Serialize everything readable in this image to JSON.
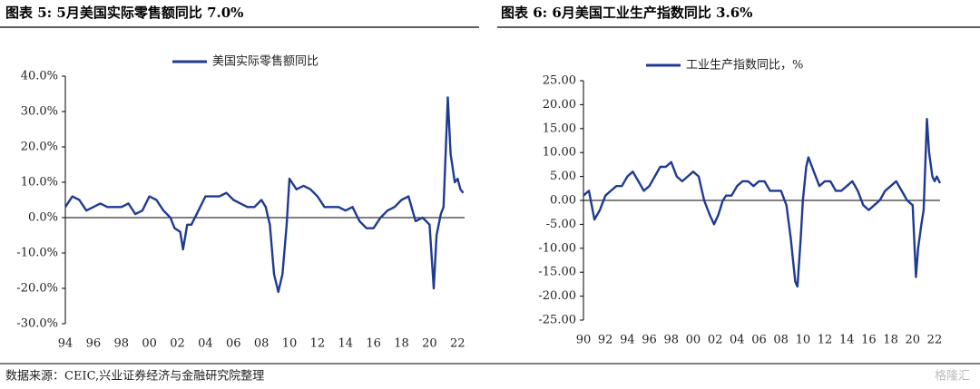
{
  "header": {
    "left_title": "图表 5:  5月美国实际零售额同比 7.0%",
    "right_title": "图表 6:   6月美国工业生产指数同比 3.6%"
  },
  "source": "数据来源：CEIC,兴业证券经济与金融研究院整理",
  "watermark": "格隆汇",
  "chart_data": [
    {
      "type": "line",
      "legend_position": "top",
      "x": [
        1994.0,
        1994.5,
        1995.0,
        1995.5,
        1996.0,
        1996.5,
        1997.0,
        1997.5,
        1998.0,
        1998.5,
        1999.0,
        1999.5,
        2000.0,
        2000.5,
        2001.0,
        2001.5,
        2001.8,
        2002.2,
        2002.4,
        2002.7,
        2003.0,
        2003.5,
        2004.0,
        2004.5,
        2005.0,
        2005.5,
        2006.0,
        2006.5,
        2007.0,
        2007.5,
        2008.0,
        2008.3,
        2008.6,
        2008.9,
        2009.2,
        2009.5,
        2009.8,
        2010.0,
        2010.5,
        2011.0,
        2011.5,
        2012.0,
        2012.5,
        2013.0,
        2013.5,
        2014.0,
        2014.5,
        2015.0,
        2015.5,
        2016.0,
        2016.5,
        2017.0,
        2017.5,
        2018.0,
        2018.5,
        2019.0,
        2019.5,
        2020.0,
        2020.3,
        2020.5,
        2020.8,
        2021.0,
        2021.3,
        2021.5,
        2021.8,
        2022.0,
        2022.2,
        2022.4
      ],
      "series": [
        {
          "name": "美国实际零售额同比",
          "color": "#1f3a93",
          "values": [
            3,
            6,
            5,
            2,
            3,
            4,
            3,
            3,
            3,
            4,
            1,
            2,
            6,
            5,
            2,
            0,
            -3,
            -4,
            -9,
            -2,
            -2,
            2,
            6,
            6,
            6,
            7,
            5,
            4,
            3,
            3,
            5,
            3,
            -2,
            -16,
            -21,
            -16,
            -2,
            11,
            8,
            9,
            8,
            6,
            3,
            3,
            3,
            2,
            3,
            -1,
            -3,
            -3,
            0,
            2,
            3,
            5,
            6,
            -1,
            0,
            -2,
            -20,
            -5,
            1,
            3,
            34,
            18,
            10,
            11,
            8,
            7
          ]
        }
      ],
      "xlim": [
        1994,
        2022.5
      ],
      "xticks": [
        {
          "value": 1994,
          "label": "94"
        },
        {
          "value": 1996,
          "label": "96"
        },
        {
          "value": 1998,
          "label": "98"
        },
        {
          "value": 2000,
          "label": "00"
        },
        {
          "value": 2002,
          "label": "02"
        },
        {
          "value": 2004,
          "label": "04"
        },
        {
          "value": 2006,
          "label": "06"
        },
        {
          "value": 2008,
          "label": "08"
        },
        {
          "value": 2010,
          "label": "10"
        },
        {
          "value": 2012,
          "label": "12"
        },
        {
          "value": 2014,
          "label": "14"
        },
        {
          "value": 2016,
          "label": "16"
        },
        {
          "value": 2018,
          "label": "18"
        },
        {
          "value": 2020,
          "label": "20"
        },
        {
          "value": 2022,
          "label": "22"
        }
      ],
      "ylim": [
        -30,
        40
      ],
      "yticks": [
        {
          "value": -30,
          "label": "-30.0%"
        },
        {
          "value": -20,
          "label": "-20.0%"
        },
        {
          "value": -10,
          "label": "-10.0%"
        },
        {
          "value": 0,
          "label": "0.0%"
        },
        {
          "value": 10,
          "label": "10.0%"
        },
        {
          "value": 20,
          "label": "20.0%"
        },
        {
          "value": 30,
          "label": "30.0%"
        },
        {
          "value": 40,
          "label": "40.0%"
        }
      ]
    },
    {
      "type": "line",
      "legend_position": "top",
      "x": [
        1990.0,
        1990.5,
        1991.0,
        1991.5,
        1992.0,
        1992.5,
        1993.0,
        1993.5,
        1994.0,
        1994.5,
        1995.0,
        1995.5,
        1996.0,
        1996.5,
        1997.0,
        1997.5,
        1998.0,
        1998.5,
        1999.0,
        1999.5,
        2000.0,
        2000.5,
        2001.0,
        2001.5,
        2001.9,
        2002.3,
        2002.7,
        2003.0,
        2003.5,
        2004.0,
        2004.5,
        2005.0,
        2005.5,
        2006.0,
        2006.5,
        2007.0,
        2007.5,
        2008.0,
        2008.5,
        2008.9,
        2009.3,
        2009.5,
        2009.8,
        2010.0,
        2010.3,
        2010.5,
        2011.0,
        2011.5,
        2012.0,
        2012.5,
        2013.0,
        2013.5,
        2014.0,
        2014.5,
        2015.0,
        2015.5,
        2016.0,
        2016.5,
        2017.0,
        2017.5,
        2018.0,
        2018.5,
        2019.0,
        2019.5,
        2020.0,
        2020.3,
        2020.5,
        2020.8,
        2021.0,
        2021.3,
        2021.5,
        2021.8,
        2022.0,
        2022.2,
        2022.5
      ],
      "series": [
        {
          "name": "工业生产指数同比，%",
          "color": "#1f3a93",
          "values": [
            1,
            2,
            -4,
            -2,
            1,
            2,
            3,
            3,
            5,
            6,
            4,
            2,
            3,
            5,
            7,
            7,
            8,
            5,
            4,
            5,
            6,
            5,
            0,
            -3,
            -5,
            -3,
            0,
            1,
            1,
            3,
            4,
            4,
            3,
            4,
            4,
            2,
            2,
            2,
            -1,
            -8,
            -17,
            -18,
            -8,
            0,
            7,
            9,
            6,
            3,
            4,
            4,
            2,
            2,
            3,
            4,
            2,
            -1,
            -2,
            -1,
            0,
            2,
            3,
            4,
            2,
            0,
            -1,
            -16,
            -10,
            -5,
            -2,
            17,
            10,
            5,
            4,
            5,
            3.6
          ]
        }
      ],
      "xlim": [
        1990,
        2022.5
      ],
      "xticks": [
        {
          "value": 1990,
          "label": "90"
        },
        {
          "value": 1992,
          "label": "92"
        },
        {
          "value": 1994,
          "label": "94"
        },
        {
          "value": 1996,
          "label": "96"
        },
        {
          "value": 1998,
          "label": "98"
        },
        {
          "value": 2000,
          "label": "00"
        },
        {
          "value": 2002,
          "label": "02"
        },
        {
          "value": 2004,
          "label": "04"
        },
        {
          "value": 2006,
          "label": "06"
        },
        {
          "value": 2008,
          "label": "08"
        },
        {
          "value": 2010,
          "label": "10"
        },
        {
          "value": 2012,
          "label": "12"
        },
        {
          "value": 2014,
          "label": "14"
        },
        {
          "value": 2016,
          "label": "16"
        },
        {
          "value": 2018,
          "label": "18"
        },
        {
          "value": 2020,
          "label": "20"
        },
        {
          "value": 2022,
          "label": "22"
        }
      ],
      "ylim": [
        -25,
        25
      ],
      "yticks": [
        {
          "value": -25,
          "label": "-25.00"
        },
        {
          "value": -20,
          "label": "-20.00"
        },
        {
          "value": -15,
          "label": "-15.00"
        },
        {
          "value": -10,
          "label": "-10.00"
        },
        {
          "value": -5,
          "label": "-5.00"
        },
        {
          "value": 0,
          "label": "0.00"
        },
        {
          "value": 5,
          "label": "5.00"
        },
        {
          "value": 10,
          "label": "10.00"
        },
        {
          "value": 15,
          "label": "15.00"
        },
        {
          "value": 20,
          "label": "20.00"
        },
        {
          "value": 25,
          "label": "25.00"
        }
      ]
    }
  ]
}
